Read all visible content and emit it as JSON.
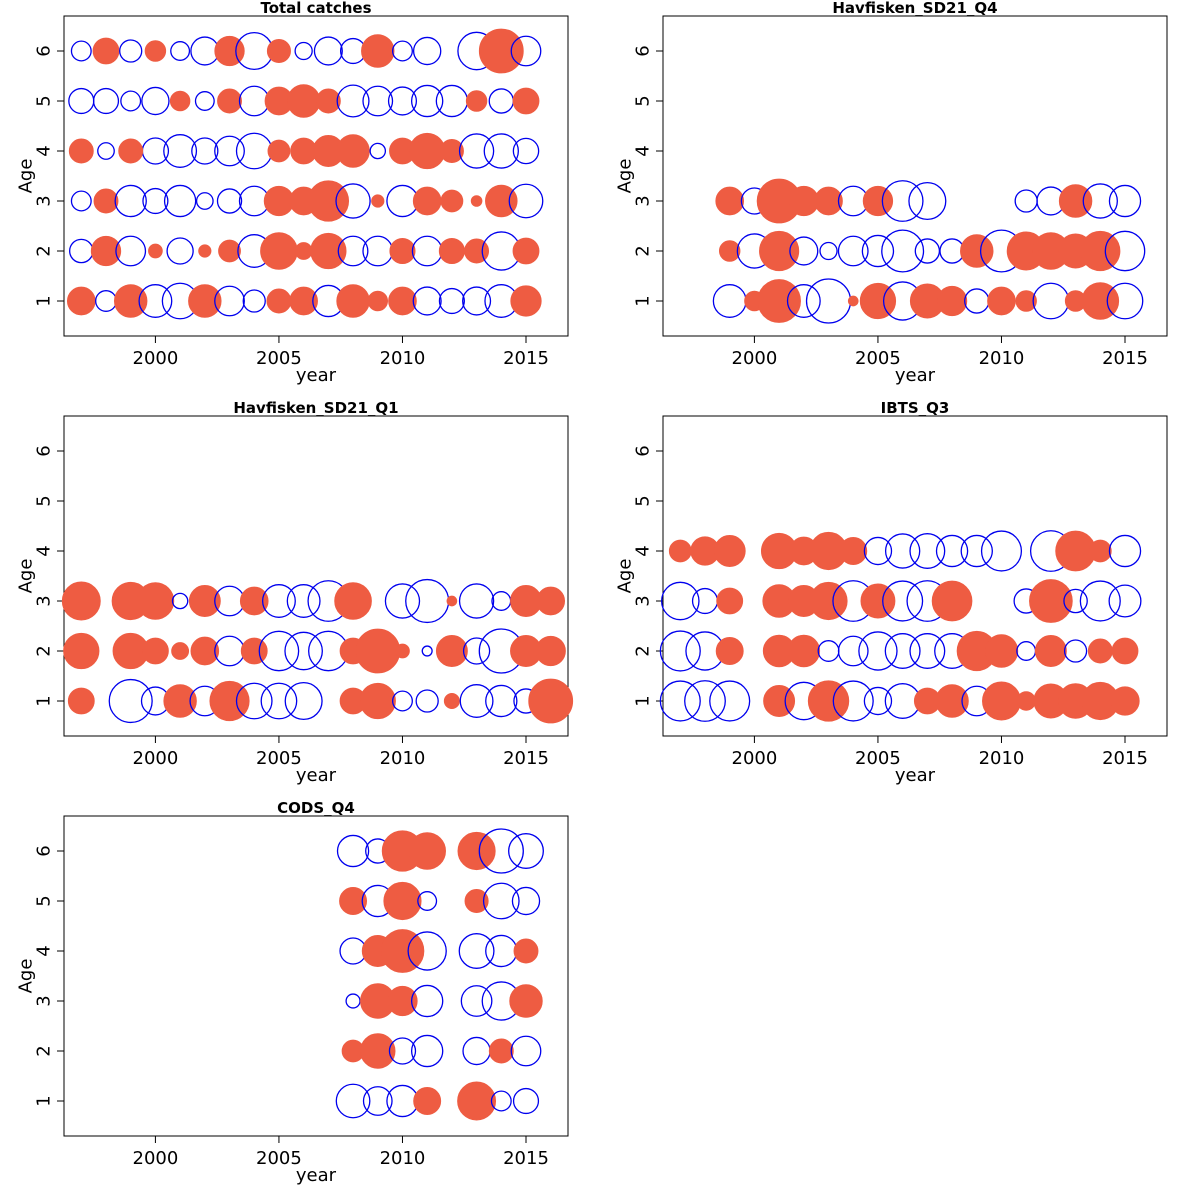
{
  "chart_data": [
    {
      "type": "scatter",
      "title": "Total catches",
      "xlabel": "year",
      "ylabel": "Age",
      "xlim": [
        1996.3,
        2016.7
      ],
      "ylim": [
        0.3,
        6.7
      ],
      "xticks": [
        "2000",
        "2005",
        "2010",
        "2015"
      ],
      "yticks": [
        "1",
        "2",
        "3",
        "4",
        "5",
        "6"
      ],
      "legend": "none",
      "positive_color": "#EE5C42",
      "negative_color": "#0000EE",
      "residuals": [
        {
          "age": 6,
          "x": [
            1997,
            1998,
            1999,
            2000,
            2001,
            2002,
            2003,
            2004,
            2005,
            2006,
            2007,
            2008,
            2009,
            2010,
            2011,
            2013,
            2014,
            2015
          ],
          "r": [
            -0.2,
            0.35,
            -0.25,
            0.22,
            -0.18,
            -0.4,
            0.45,
            -0.7,
            0.28,
            -0.15,
            -0.4,
            -0.32,
            0.55,
            -0.2,
            -0.38,
            -0.72,
            1.0,
            -0.45
          ]
        },
        {
          "age": 5,
          "x": [
            1997,
            1998,
            1999,
            2000,
            2001,
            2002,
            2003,
            2004,
            2005,
            2006,
            2007,
            2008,
            2009,
            2010,
            2011,
            2012,
            2013,
            2014,
            2015
          ],
          "r": [
            -0.32,
            -0.32,
            -0.2,
            -0.38,
            0.2,
            -0.18,
            0.3,
            -0.45,
            0.4,
            0.55,
            0.3,
            -0.52,
            -0.45,
            -0.4,
            -0.5,
            -0.5,
            0.22,
            -0.3,
            0.35
          ]
        },
        {
          "age": 4,
          "x": [
            1997,
            1998,
            2000,
            2001,
            2002,
            2003,
            2004,
            2005,
            2006,
            2007,
            2008,
            2009,
            2010,
            2011,
            2012,
            2013,
            2014,
            2015
          ],
          "r": [
            0.3,
            -0.14,
            -0.35,
            -0.55,
            -0.35,
            -0.45,
            -0.65,
            0.25,
            0.35,
            0.5,
            0.55,
            -0.12,
            0.35,
            0.65,
            0.28,
            -0.6,
            -0.6,
            -0.33
          ],
          "extra": {
            "x": 1999,
            "r": 0.3
          }
        },
        {
          "age": 3,
          "x": [
            1997,
            1998,
            1999,
            2000,
            2001,
            2002,
            2003,
            2004,
            2005,
            2006,
            2007,
            2008,
            2009,
            2010,
            2011,
            2012,
            2013,
            2014,
            2015
          ],
          "r": [
            -0.2,
            0.3,
            -0.5,
            -0.32,
            -0.5,
            -0.14,
            -0.3,
            -0.45,
            0.45,
            0.4,
            0.85,
            -0.6,
            0.08,
            -0.5,
            0.4,
            0.25,
            0.06,
            0.52,
            -0.58
          ]
        },
        {
          "age": 2,
          "x": [
            1997,
            1998,
            1999,
            2000,
            2001,
            2002,
            2003,
            2004,
            2005,
            2006,
            2007,
            2008,
            2009,
            2010,
            2011,
            2012,
            2013,
            2014,
            2015
          ],
          "r": [
            -0.28,
            0.45,
            -0.45,
            0.1,
            -0.35,
            0.08,
            0.25,
            -0.55,
            0.7,
            0.15,
            0.65,
            -0.45,
            -0.45,
            0.33,
            -0.45,
            0.33,
            0.3,
            -0.75,
            0.35
          ]
        },
        {
          "age": 1,
          "x": [
            1997,
            1998,
            1999,
            2000,
            2001,
            2002,
            2003,
            2004,
            2005,
            2006,
            2007,
            2008,
            2009,
            2010,
            2011,
            2012,
            2013,
            2014,
            2015
          ],
          "r": [
            0.4,
            -0.22,
            0.55,
            -0.55,
            -0.65,
            0.55,
            -0.45,
            -0.25,
            0.3,
            0.4,
            -0.5,
            0.55,
            0.2,
            0.4,
            -0.4,
            -0.32,
            -0.4,
            -0.55,
            0.48
          ]
        }
      ]
    },
    {
      "type": "scatter",
      "title": "Havfisken_SD21_Q4",
      "xlabel": "year",
      "ylabel": "Age",
      "xlim": [
        1996.3,
        2016.7
      ],
      "ylim": [
        0.3,
        6.7
      ],
      "xticks": [
        "2000",
        "2005",
        "2010",
        "2015"
      ],
      "yticks": [
        "1",
        "2",
        "3",
        "4",
        "5",
        "6"
      ],
      "legend": "none",
      "positive_color": "#EE5C42",
      "negative_color": "#0000EE",
      "residuals": [
        {
          "age": 3,
          "x": [
            1999,
            2000,
            2001,
            2002,
            2003,
            2004,
            2005,
            2006,
            2007,
            2011,
            2012,
            2013,
            2014,
            2015
          ],
          "r": [
            0.4,
            -0.35,
            1.0,
            0.45,
            0.4,
            -0.45,
            0.45,
            -0.85,
            -0.7,
            -0.25,
            -0.4,
            0.55,
            -0.6,
            -0.5
          ]
        },
        {
          "age": 2,
          "x": [
            1999,
            2000,
            2001,
            2002,
            2003,
            2004,
            2005,
            2006,
            2007,
            2008,
            2009,
            2010,
            2011,
            2012,
            2013,
            2014,
            2015
          ],
          "r": [
            0.22,
            -0.6,
            0.8,
            -0.4,
            -0.15,
            -0.45,
            -0.5,
            -0.9,
            -0.3,
            -0.3,
            0.55,
            -0.9,
            0.75,
            0.7,
            0.6,
            0.8,
            -0.8
          ]
        },
        {
          "age": 1,
          "x": [
            1999,
            2000,
            2001,
            2002,
            2003,
            2004,
            2005,
            2006,
            2007,
            2008,
            2009,
            2010,
            2011,
            2012,
            2013,
            2014,
            2015
          ],
          "r": [
            -0.55,
            0.2,
            0.95,
            -0.55,
            -1.0,
            0.05,
            0.65,
            -0.75,
            0.6,
            0.45,
            -0.3,
            0.4,
            0.22,
            -0.65,
            0.22,
            0.7,
            -0.65
          ]
        }
      ]
    },
    {
      "type": "scatter",
      "title": "Havfisken_SD21_Q1",
      "xlabel": "year",
      "ylabel": "Age",
      "xlim": [
        1996.3,
        2016.7
      ],
      "ylim": [
        0.3,
        6.7
      ],
      "xticks": [
        "2000",
        "2005",
        "2010",
        "2015"
      ],
      "yticks": [
        "1",
        "2",
        "3",
        "4",
        "5",
        "6"
      ],
      "legend": "none",
      "positive_color": "#EE5C42",
      "negative_color": "#0000EE",
      "residuals": [
        {
          "age": 3,
          "x": [
            1997,
            1999,
            2000,
            2001,
            2002,
            2003,
            2004,
            2005,
            2006,
            2007,
            2008,
            2010,
            2011,
            2012,
            2013,
            2014,
            2015,
            2016
          ],
          "r": [
            0.75,
            0.72,
            0.7,
            -0.12,
            0.5,
            -0.45,
            0.4,
            -0.55,
            -0.55,
            -0.85,
            0.7,
            -0.6,
            -0.95,
            0.05,
            -0.6,
            -0.18,
            0.5,
            0.4
          ]
        },
        {
          "age": 2,
          "x": [
            1997,
            1999,
            2000,
            2001,
            2002,
            2003,
            2004,
            2005,
            2006,
            2007,
            2008,
            2009,
            2010,
            2011,
            2012,
            2013,
            2014,
            2015,
            2016
          ],
          "r": [
            0.65,
            0.65,
            0.35,
            0.15,
            0.4,
            -0.45,
            0.35,
            -0.8,
            -0.72,
            -0.8,
            0.35,
            1.0,
            0.1,
            -0.05,
            0.5,
            -0.35,
            -1.0,
            0.5,
            0.45
          ]
        },
        {
          "age": 1,
          "x": [
            1997,
            1999,
            2000,
            2001,
            2002,
            2003,
            2004,
            2005,
            2006,
            2008,
            2009,
            2010,
            2011,
            2012,
            2013,
            2014,
            2015,
            2016
          ],
          "r": [
            0.35,
            -0.95,
            -0.4,
            0.55,
            -0.45,
            0.8,
            -0.65,
            -0.65,
            -0.7,
            0.35,
            0.65,
            -0.2,
            -0.25,
            0.12,
            -0.55,
            -0.5,
            -0.3,
            1.0
          ]
        }
      ]
    },
    {
      "type": "scatter",
      "title": "IBTS_Q3",
      "xlabel": "year",
      "ylabel": "Age",
      "xlim": [
        1996.3,
        2016.7
      ],
      "ylim": [
        0.3,
        6.7
      ],
      "xticks": [
        "2000",
        "2005",
        "2010",
        "2015"
      ],
      "yticks": [
        "1",
        "2",
        "3",
        "4",
        "5",
        "6"
      ],
      "legend": "none",
      "positive_color": "#EE5C42",
      "negative_color": "#0000EE",
      "residuals": [
        {
          "age": 4,
          "x": [
            1997,
            1998,
            1999,
            2001,
            2002,
            2003,
            2004,
            2005,
            2006,
            2007,
            2008,
            2009,
            2010,
            2012,
            2013,
            2014,
            2015
          ],
          "r": [
            0.25,
            0.42,
            0.5,
            0.65,
            0.4,
            0.72,
            0.38,
            -0.38,
            -0.6,
            -0.62,
            -0.5,
            -0.5,
            -0.82,
            -0.85,
            0.82,
            0.25,
            -0.5
          ]
        },
        {
          "age": 3,
          "x": [
            1997,
            1998,
            1999,
            2001,
            2002,
            2003,
            2004,
            2005,
            2006,
            2007,
            2008,
            2011,
            2012,
            2013,
            2014,
            2015
          ],
          "r": [
            -0.72,
            -0.32,
            0.35,
            0.55,
            0.5,
            0.72,
            -0.85,
            0.6,
            -0.82,
            -0.85,
            0.82,
            -0.3,
            0.95,
            -0.28,
            -0.82,
            -0.52
          ]
        },
        {
          "age": 2,
          "x": [
            1997,
            1998,
            1999,
            2001,
            2002,
            2003,
            2004,
            2005,
            2006,
            2007,
            2008,
            2009,
            2010,
            2011,
            2012,
            2013,
            2014,
            2015
          ],
          "r": [
            -0.82,
            -0.75,
            0.38,
            0.52,
            0.52,
            -0.22,
            -0.45,
            -0.75,
            -0.62,
            -0.62,
            -0.62,
            0.8,
            0.55,
            -0.18,
            0.5,
            -0.25,
            0.3,
            0.35
          ]
        },
        {
          "age": 1,
          "x": [
            1997,
            1998,
            1999,
            2001,
            2002,
            2003,
            2004,
            2005,
            2006,
            2007,
            2008,
            2009,
            2010,
            2011,
            2012,
            2013,
            2014,
            2015
          ],
          "r": [
            -0.82,
            -0.85,
            -0.82,
            0.5,
            -0.72,
            0.85,
            -0.82,
            -0.38,
            -0.62,
            0.35,
            0.55,
            -0.45,
            0.75,
            0.18,
            0.6,
            0.62,
            0.72,
            0.42
          ]
        }
      ]
    },
    {
      "type": "scatter",
      "title": "CODS_Q4",
      "xlabel": "year",
      "ylabel": "Age",
      "xlim": [
        1996.3,
        2016.7
      ],
      "ylim": [
        0.3,
        6.7
      ],
      "xticks": [
        "2000",
        "2005",
        "2010",
        "2015"
      ],
      "yticks": [
        "1",
        "2",
        "3",
        "4",
        "5",
        "6"
      ],
      "legend": "none",
      "positive_color": "#EE5C42",
      "negative_color": "#0000EE",
      "residuals": [
        {
          "age": 6,
          "x": [
            2008,
            2009,
            2010,
            2011,
            2013,
            2014,
            2015
          ],
          "r": [
            -0.5,
            -0.3,
            0.85,
            0.7,
            0.72,
            -1.0,
            -0.62
          ]
        },
        {
          "age": 5,
          "x": [
            2008,
            2009,
            2010,
            2011,
            2013,
            2014,
            2015
          ],
          "r": [
            0.38,
            -0.5,
            0.72,
            -0.18,
            0.28,
            -0.65,
            -0.38
          ]
        },
        {
          "age": 4,
          "x": [
            2008,
            2009,
            2010,
            2011,
            2013,
            2014,
            2015
          ],
          "r": [
            -0.35,
            0.5,
            0.95,
            -0.75,
            -0.62,
            -0.5,
            0.3
          ]
        },
        {
          "age": 3,
          "x": [
            2008,
            2009,
            2010,
            2011,
            2013,
            2014,
            2015
          ],
          "r": [
            -0.1,
            0.62,
            0.45,
            -0.5,
            -0.48,
            -0.75,
            0.55
          ]
        },
        {
          "age": 2,
          "x": [
            2008,
            2009,
            2010,
            2011,
            2013,
            2014,
            2015
          ],
          "r": [
            0.25,
            0.62,
            -0.35,
            -0.5,
            -0.38,
            0.3,
            -0.45
          ]
        },
        {
          "age": 1,
          "x": [
            2008,
            2009,
            2010,
            2011,
            2013,
            2014,
            2015
          ],
          "r": [
            -0.58,
            -0.42,
            -0.5,
            0.38,
            0.75,
            -0.2,
            -0.32
          ]
        }
      ]
    }
  ]
}
